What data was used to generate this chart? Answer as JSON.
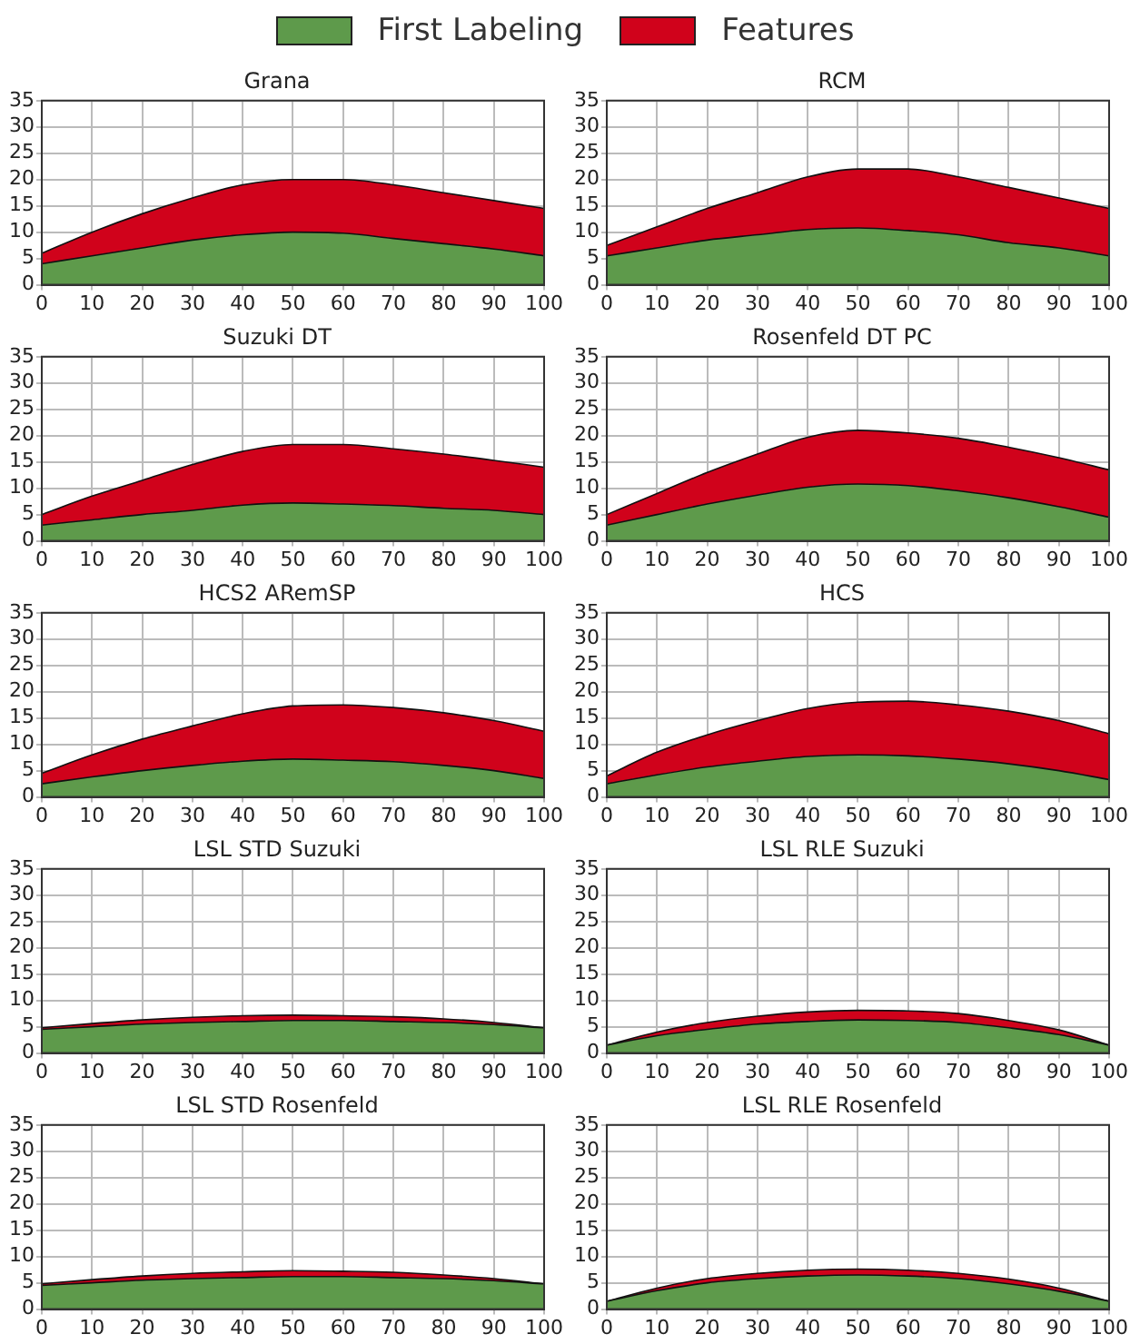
{
  "chart_data": [
    {
      "type": "area",
      "title": "Grana",
      "stacked": true,
      "legend": "top",
      "grid": true,
      "marker": "none",
      "x": [
        0,
        10,
        20,
        30,
        40,
        50,
        60,
        70,
        80,
        90,
        100
      ],
      "xlim": [
        0,
        100
      ],
      "ylim": [
        0,
        35
      ],
      "xticks": [
        0,
        10,
        20,
        30,
        40,
        50,
        60,
        70,
        80,
        90,
        100
      ],
      "yticks": [
        0,
        5,
        10,
        15,
        20,
        25,
        30,
        35
      ],
      "series": [
        {
          "name": "First Labeling",
          "color": "#5e9a4b",
          "values": [
            4,
            5.5,
            7,
            8.5,
            9.5,
            10,
            9.8,
            8.8,
            7.8,
            6.8,
            5.5
          ]
        },
        {
          "name": "Features",
          "color": "#d0021b",
          "values": [
            2,
            4.5,
            6.5,
            8,
            9.5,
            10,
            10.2,
            10.2,
            9.7,
            9.2,
            9
          ]
        }
      ]
    },
    {
      "type": "area",
      "title": "RCM",
      "stacked": true,
      "grid": true,
      "marker": "none",
      "x": [
        0,
        10,
        20,
        30,
        40,
        50,
        60,
        70,
        80,
        90,
        100
      ],
      "xlim": [
        0,
        100
      ],
      "ylim": [
        0,
        35
      ],
      "xticks": [
        0,
        10,
        20,
        30,
        40,
        50,
        60,
        70,
        80,
        90,
        100
      ],
      "yticks": [
        0,
        5,
        10,
        15,
        20,
        25,
        30,
        35
      ],
      "series": [
        {
          "color": "#5e9a4b",
          "values": [
            5.5,
            7,
            8.5,
            9.5,
            10.5,
            10.8,
            10.3,
            9.5,
            8,
            7,
            5.5
          ]
        },
        {
          "color": "#d0021b",
          "values": [
            2,
            4,
            6,
            8,
            10,
            11.2,
            11.7,
            11,
            10.5,
            9.5,
            9
          ]
        }
      ]
    },
    {
      "type": "area",
      "title": "Suzuki DT",
      "stacked": true,
      "grid": true,
      "marker": "none",
      "x": [
        0,
        10,
        20,
        30,
        40,
        50,
        60,
        70,
        80,
        90,
        100
      ],
      "xlim": [
        0,
        100
      ],
      "ylim": [
        0,
        35
      ],
      "xticks": [
        0,
        10,
        20,
        30,
        40,
        50,
        60,
        70,
        80,
        90,
        100
      ],
      "yticks": [
        0,
        5,
        10,
        15,
        20,
        25,
        30,
        35
      ],
      "series": [
        {
          "color": "#5e9a4b",
          "values": [
            3,
            4,
            5,
            5.8,
            6.8,
            7.2,
            7,
            6.7,
            6.2,
            5.8,
            5
          ]
        },
        {
          "color": "#d0021b",
          "values": [
            2,
            4.5,
            6.5,
            8.7,
            10.2,
            11.1,
            11.3,
            10.8,
            10.3,
            9.5,
            9
          ]
        }
      ]
    },
    {
      "type": "area",
      "title": "Rosenfeld DT PC",
      "stacked": true,
      "grid": true,
      "marker": "none",
      "x": [
        0,
        10,
        20,
        30,
        40,
        50,
        60,
        70,
        80,
        90,
        100
      ],
      "xlim": [
        0,
        100
      ],
      "ylim": [
        0,
        35
      ],
      "xticks": [
        0,
        10,
        20,
        30,
        40,
        50,
        60,
        70,
        80,
        90,
        100
      ],
      "yticks": [
        0,
        5,
        10,
        15,
        20,
        25,
        30,
        35
      ],
      "series": [
        {
          "color": "#5e9a4b",
          "values": [
            3,
            5,
            7,
            8.7,
            10.2,
            10.8,
            10.5,
            9.5,
            8.2,
            6.5,
            4.5
          ]
        },
        {
          "color": "#d0021b",
          "values": [
            2,
            4,
            6,
            7.8,
            9.5,
            10.2,
            10,
            10,
            9.6,
            9.3,
            9
          ]
        }
      ]
    },
    {
      "type": "area",
      "title": "HCS2 ARemSP",
      "stacked": true,
      "grid": true,
      "marker": "none",
      "x": [
        0,
        10,
        20,
        30,
        40,
        50,
        60,
        70,
        80,
        90,
        100
      ],
      "xlim": [
        0,
        100
      ],
      "ylim": [
        0,
        35
      ],
      "xticks": [
        0,
        10,
        20,
        30,
        40,
        50,
        60,
        70,
        80,
        90,
        100
      ],
      "yticks": [
        0,
        5,
        10,
        15,
        20,
        25,
        30,
        35
      ],
      "series": [
        {
          "color": "#5e9a4b",
          "values": [
            2.5,
            3.8,
            5,
            6,
            6.8,
            7.2,
            7,
            6.7,
            6,
            5,
            3.5
          ]
        },
        {
          "color": "#d0021b",
          "values": [
            2,
            4.2,
            6,
            7.5,
            9,
            10.1,
            10.5,
            10.3,
            10,
            9.5,
            9
          ]
        }
      ]
    },
    {
      "type": "area",
      "title": "HCS",
      "stacked": true,
      "grid": true,
      "marker": "none",
      "x": [
        0,
        10,
        20,
        30,
        40,
        50,
        60,
        70,
        80,
        90,
        100
      ],
      "xlim": [
        0,
        100
      ],
      "ylim": [
        0,
        35
      ],
      "xticks": [
        0,
        10,
        20,
        30,
        40,
        50,
        60,
        70,
        80,
        90,
        100
      ],
      "yticks": [
        0,
        5,
        10,
        15,
        20,
        25,
        30,
        35
      ],
      "series": [
        {
          "color": "#5e9a4b",
          "values": [
            2.5,
            4.2,
            5.7,
            6.8,
            7.7,
            8,
            7.8,
            7.2,
            6.3,
            5,
            3.3
          ]
        },
        {
          "color": "#d0021b",
          "values": [
            1.5,
            4.3,
            6.1,
            7.7,
            9.1,
            10,
            10.4,
            10.3,
            10,
            9.5,
            8.7
          ]
        }
      ]
    },
    {
      "type": "area",
      "title": "LSL STD Suzuki",
      "stacked": true,
      "grid": true,
      "marker": "none",
      "x": [
        0,
        10,
        20,
        30,
        40,
        50,
        60,
        70,
        80,
        90,
        100
      ],
      "xlim": [
        0,
        100
      ],
      "ylim": [
        0,
        35
      ],
      "xticks": [
        0,
        10,
        20,
        30,
        40,
        50,
        60,
        70,
        80,
        90,
        100
      ],
      "yticks": [
        0,
        5,
        10,
        15,
        20,
        25,
        30,
        35
      ],
      "series": [
        {
          "color": "#5e9a4b",
          "values": [
            4.5,
            5,
            5.5,
            5.8,
            6,
            6.2,
            6.2,
            6,
            5.8,
            5.4,
            4.8
          ]
        },
        {
          "color": "#d0021b",
          "values": [
            0.3,
            0.6,
            0.8,
            1,
            1.1,
            1,
            0.9,
            0.9,
            0.7,
            0.4,
            0
          ]
        }
      ]
    },
    {
      "type": "area",
      "title": "LSL RLE Suzuki",
      "stacked": true,
      "grid": true,
      "marker": "none",
      "x": [
        0,
        10,
        20,
        30,
        40,
        50,
        60,
        70,
        80,
        90,
        100
      ],
      "xlim": [
        0,
        100
      ],
      "ylim": [
        0,
        35
      ],
      "xticks": [
        0,
        10,
        20,
        30,
        40,
        50,
        60,
        70,
        80,
        90,
        100
      ],
      "yticks": [
        0,
        5,
        10,
        15,
        20,
        25,
        30,
        35
      ],
      "series": [
        {
          "color": "#5e9a4b",
          "values": [
            1.5,
            3.3,
            4.5,
            5.5,
            6,
            6.3,
            6.2,
            5.8,
            4.8,
            3.5,
            1.5
          ]
        },
        {
          "color": "#d0021b",
          "values": [
            0,
            0.7,
            1.3,
            1.5,
            1.8,
            1.8,
            1.8,
            1.7,
            1.4,
            0.9,
            0
          ]
        }
      ]
    },
    {
      "type": "area",
      "title": "LSL STD Rosenfeld",
      "stacked": true,
      "grid": true,
      "marker": "none",
      "x": [
        0,
        10,
        20,
        30,
        40,
        50,
        60,
        70,
        80,
        90,
        100
      ],
      "xlim": [
        0,
        100
      ],
      "ylim": [
        0,
        35
      ],
      "xticks": [
        0,
        10,
        20,
        30,
        40,
        50,
        60,
        70,
        80,
        90,
        100
      ],
      "yticks": [
        0,
        5,
        10,
        15,
        20,
        25,
        30,
        35
      ],
      "series": [
        {
          "color": "#5e9a4b",
          "values": [
            4.5,
            5,
            5.5,
            5.8,
            6,
            6.2,
            6.2,
            6,
            5.8,
            5.4,
            4.8
          ]
        },
        {
          "color": "#d0021b",
          "values": [
            0.3,
            0.6,
            0.8,
            1,
            1.1,
            1.1,
            1,
            1,
            0.7,
            0.4,
            0
          ]
        }
      ]
    },
    {
      "type": "area",
      "title": "LSL RLE Rosenfeld",
      "stacked": true,
      "grid": true,
      "marker": "none",
      "x": [
        0,
        10,
        20,
        30,
        40,
        50,
        60,
        70,
        80,
        90,
        100
      ],
      "xlim": [
        0,
        100
      ],
      "ylim": [
        0,
        35
      ],
      "xticks": [
        0,
        10,
        20,
        30,
        40,
        50,
        60,
        70,
        80,
        90,
        100
      ],
      "yticks": [
        0,
        5,
        10,
        15,
        20,
        25,
        30,
        35
      ],
      "series": [
        {
          "color": "#5e9a4b",
          "values": [
            1.5,
            3.5,
            5,
            5.8,
            6.3,
            6.5,
            6.3,
            5.8,
            4.8,
            3.4,
            1.5
          ]
        },
        {
          "color": "#d0021b",
          "values": [
            0,
            0.5,
            0.8,
            1,
            1.1,
            1.1,
            1.1,
            1,
            0.9,
            0.6,
            0
          ]
        }
      ]
    }
  ]
}
